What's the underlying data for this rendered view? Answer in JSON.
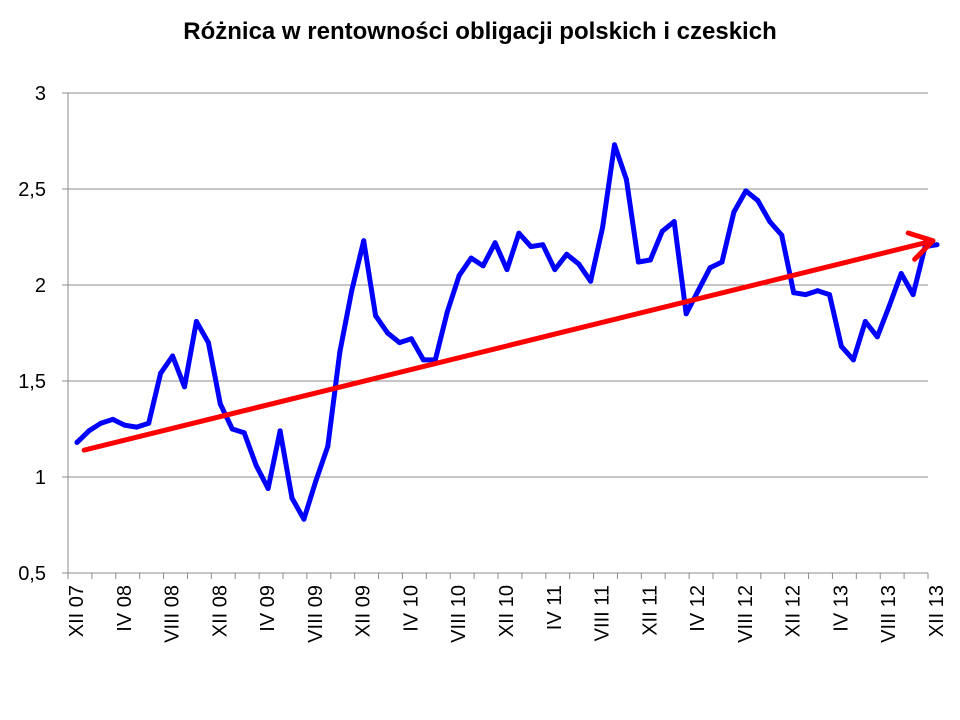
{
  "chart_data": {
    "type": "line",
    "title": "Różnica w rentowności obligacji polskich i czeskich",
    "xlabel": "",
    "ylabel": "",
    "ylim": [
      0.5,
      3
    ],
    "y_ticks": [
      0.5,
      1,
      1.5,
      2,
      2.5,
      3
    ],
    "y_tick_labels": [
      "0,5",
      "1",
      "1,5",
      "2",
      "2,5",
      "3"
    ],
    "x_tick_labels": [
      "XII 07",
      "IV 08",
      "VIII 08",
      "XII 08",
      "IV 09",
      "VIII 09",
      "XII 09",
      "IV 10",
      "VIII 10",
      "XII 10",
      "IV 11",
      "VIII 11",
      "XII 11",
      "IV 12",
      "VIII 12",
      "XII 12",
      "IV 13",
      "VIII 13",
      "XII 13"
    ],
    "grid": true,
    "colors": {
      "line": "#0000ff",
      "trend": "#ff0000",
      "grid": "#8c8c8c"
    },
    "series": [
      {
        "values": [
          1.18,
          1.24,
          1.28,
          1.3,
          1.27,
          1.26,
          1.28,
          1.54,
          1.63,
          1.47,
          1.81,
          1.7,
          1.38,
          1.25,
          1.23,
          1.06,
          0.94,
          1.24,
          0.89,
          0.78,
          0.98,
          1.16,
          1.65,
          1.97,
          2.23,
          1.84,
          1.75,
          1.7,
          1.72,
          1.61,
          1.61,
          1.86,
          2.05,
          2.14,
          2.1,
          2.22,
          2.08,
          2.27,
          2.2,
          2.21,
          2.08,
          2.16,
          2.11,
          2.02,
          2.3,
          2.73,
          2.55,
          2.12,
          2.13,
          2.28,
          2.33,
          1.85,
          1.97,
          2.09,
          2.12,
          2.38,
          2.49,
          2.44,
          2.33,
          2.26,
          1.96,
          1.95,
          1.97,
          1.95,
          1.68,
          1.61,
          1.81,
          1.73,
          1.89,
          2.06,
          1.95,
          2.2,
          2.21
        ]
      }
    ],
    "trend": {
      "start": {
        "x_index": 0.6,
        "y": 1.14
      },
      "end": {
        "x_index": 72,
        "y": 2.23
      },
      "arrow": true
    }
  }
}
